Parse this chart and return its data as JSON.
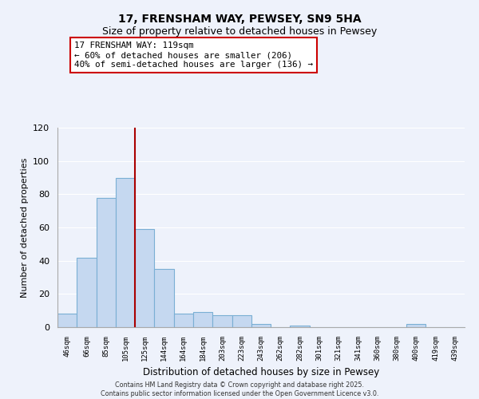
{
  "title": "17, FRENSHAM WAY, PEWSEY, SN9 5HA",
  "subtitle": "Size of property relative to detached houses in Pewsey",
  "xlabel": "Distribution of detached houses by size in Pewsey",
  "ylabel": "Number of detached properties",
  "bar_labels": [
    "46sqm",
    "66sqm",
    "85sqm",
    "105sqm",
    "125sqm",
    "144sqm",
    "164sqm",
    "184sqm",
    "203sqm",
    "223sqm",
    "243sqm",
    "262sqm",
    "282sqm",
    "301sqm",
    "321sqm",
    "341sqm",
    "360sqm",
    "380sqm",
    "400sqm",
    "419sqm",
    "439sqm"
  ],
  "bar_values": [
    8,
    42,
    78,
    90,
    59,
    35,
    8,
    9,
    7,
    7,
    2,
    0,
    1,
    0,
    0,
    0,
    0,
    0,
    2,
    0,
    0
  ],
  "bar_color": "#c5d8f0",
  "bar_edge_color": "#7aafd4",
  "vline_color": "#aa0000",
  "ylim": [
    0,
    120
  ],
  "yticks": [
    0,
    20,
    40,
    60,
    80,
    100,
    120
  ],
  "annotation_title": "17 FRENSHAM WAY: 119sqm",
  "annotation_line1": "← 60% of detached houses are smaller (206)",
  "annotation_line2": "40% of semi-detached houses are larger (136) →",
  "annotation_box_color": "#ffffff",
  "annotation_box_edgecolor": "#cc0000",
  "background_color": "#eef2fb",
  "grid_color": "#ffffff",
  "title_fontsize": 10,
  "subtitle_fontsize": 9,
  "footer1": "Contains HM Land Registry data © Crown copyright and database right 2025.",
  "footer2": "Contains public sector information licensed under the Open Government Licence v3.0."
}
